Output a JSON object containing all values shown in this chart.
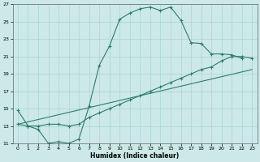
{
  "xlabel": "Humidex (Indice chaleur)",
  "bg_color": "#cce8e8",
  "grid_color": "#aad4d4",
  "line_color": "#2e7d6e",
  "xlim": [
    -0.5,
    23.5
  ],
  "ylim": [
    11,
    27
  ],
  "xticks": [
    0,
    1,
    2,
    3,
    4,
    5,
    6,
    7,
    8,
    9,
    10,
    11,
    12,
    13,
    14,
    15,
    16,
    17,
    18,
    19,
    20,
    21,
    22,
    23
  ],
  "yticks": [
    11,
    13,
    15,
    17,
    19,
    21,
    23,
    25,
    27
  ],
  "line1_x": [
    0,
    1,
    2,
    3,
    4,
    5,
    6,
    7,
    8,
    9,
    10,
    11,
    12,
    13,
    14,
    15,
    16,
    17,
    18,
    19,
    20,
    21,
    22
  ],
  "line1_y": [
    14.8,
    13.0,
    12.6,
    11.0,
    11.2,
    11.0,
    11.5,
    15.3,
    20.0,
    22.2,
    25.3,
    26.0,
    26.5,
    26.7,
    26.3,
    26.7,
    25.2,
    22.6,
    22.5,
    21.3,
    21.3,
    21.2,
    20.8
  ],
  "line2_x": [
    0,
    1,
    2,
    3,
    4,
    5,
    6,
    7,
    8,
    9,
    10,
    11,
    12,
    13,
    14,
    15,
    16,
    17,
    18,
    19,
    20,
    21,
    22,
    23
  ],
  "line2_y": [
    13.2,
    13.0,
    13.0,
    13.2,
    13.2,
    13.0,
    13.2,
    14.0,
    14.5,
    15.0,
    15.5,
    16.0,
    16.5,
    17.0,
    17.5,
    18.0,
    18.5,
    19.0,
    19.5,
    19.8,
    20.5,
    21.0,
    21.0,
    20.8
  ],
  "line3_x": [
    0,
    23
  ],
  "line3_y": [
    13.2,
    19.5
  ]
}
